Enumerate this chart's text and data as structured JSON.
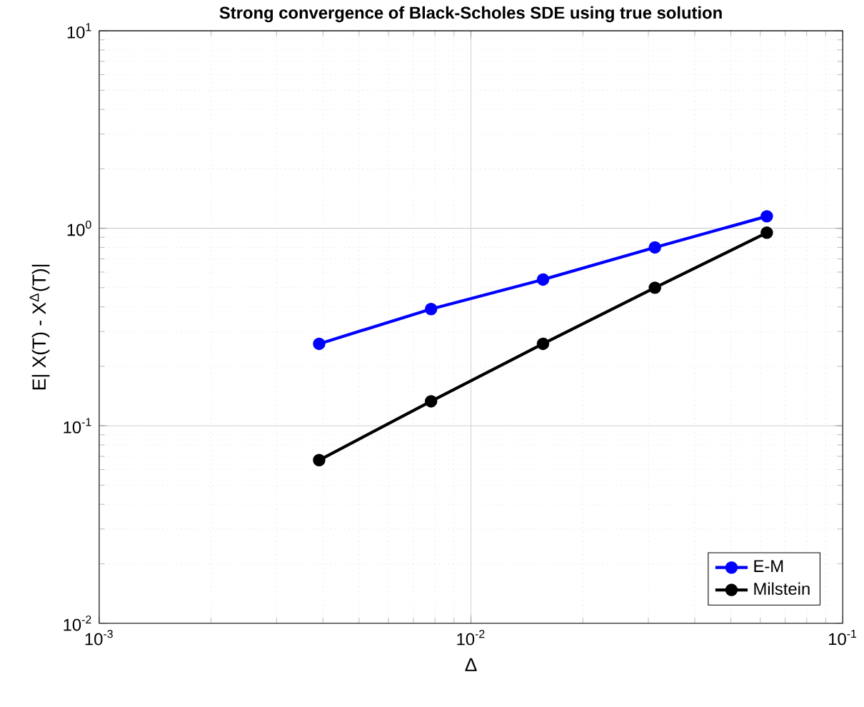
{
  "chart_data": {
    "type": "line",
    "title": "Strong convergence of Black-Scholes SDE using true solution",
    "xlabel": "Δ",
    "ylabel": "E| X(T) - X$^{Δ}$(T)|",
    "log": "xy",
    "grid": true,
    "legend": "bottom right",
    "marker": "circle",
    "line_style": "solid",
    "x": [
      0.00390625,
      0.0078125,
      0.015625,
      0.03125,
      0.0625
    ],
    "xlim": [
      0.001,
      0.1
    ],
    "ylim": [
      0.01,
      10
    ],
    "xticks": [
      {
        "value": 0.001,
        "label": "10$^{-3}$"
      },
      {
        "value": 0.01,
        "label": "10$^{-2}$"
      },
      {
        "value": 0.1,
        "label": "10$^{-1}$"
      }
    ],
    "yticks": [
      {
        "value": 0.01,
        "label": "10$^{-2}$"
      },
      {
        "value": 0.1,
        "label": "10$^{-1}$"
      },
      {
        "value": 1,
        "label": "10$^{0}$"
      },
      {
        "value": 10,
        "label": "10$^{1}$"
      }
    ],
    "series": [
      {
        "name": "E-M",
        "color": "#0000ff",
        "values": [
          0.26,
          0.39,
          0.55,
          0.8,
          1.15
        ]
      },
      {
        "name": "Milstein",
        "color": "#000000",
        "values": [
          0.067,
          0.133,
          0.26,
          0.5,
          0.95
        ]
      }
    ]
  }
}
